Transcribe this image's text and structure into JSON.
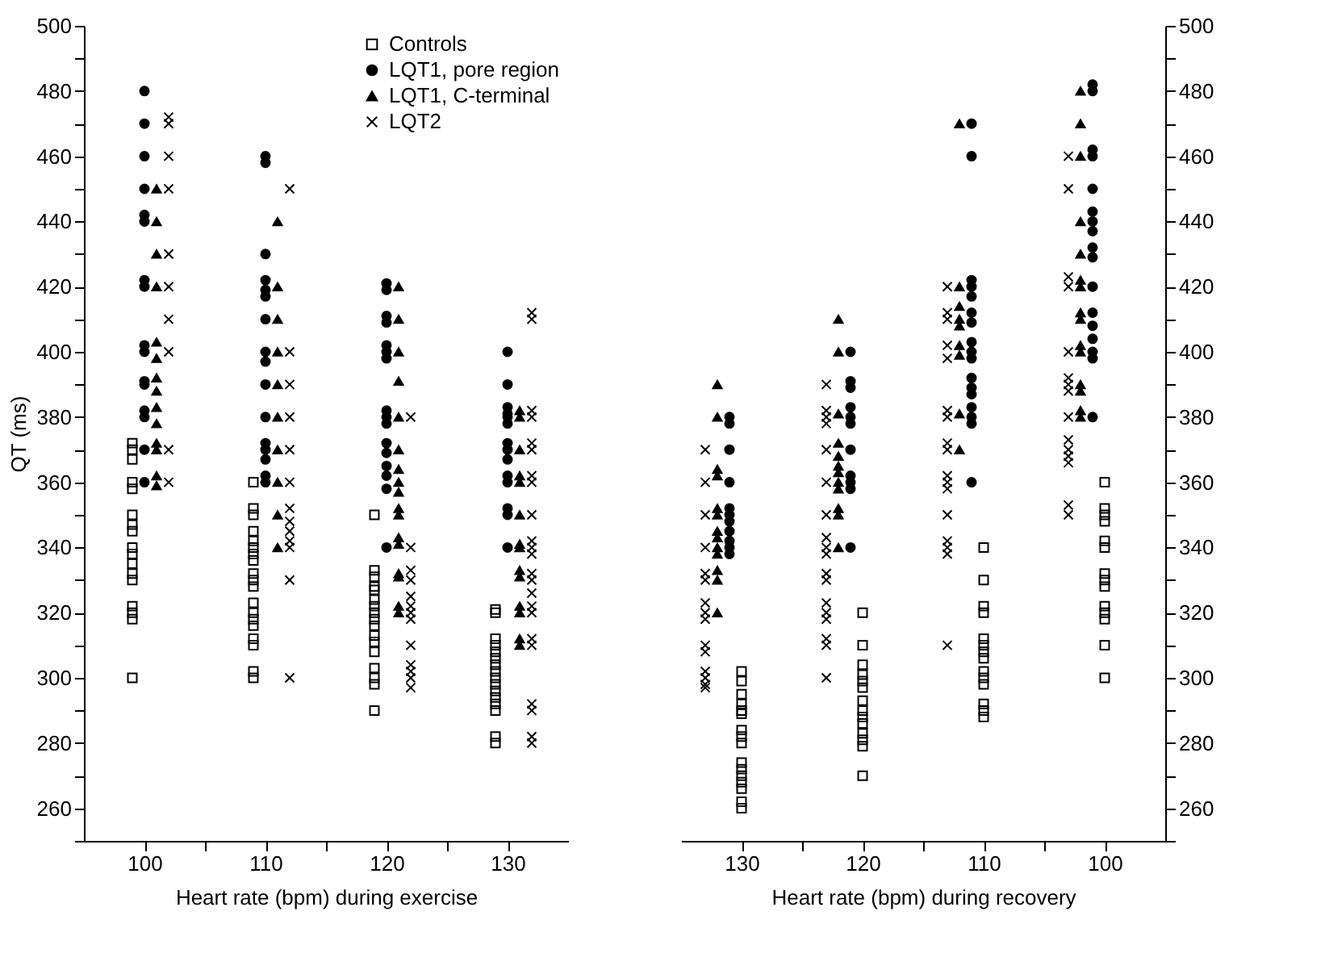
{
  "chart_data": [
    {
      "type": "scatter",
      "ylabel": "QT (ms)",
      "xlabel": "Heart rate (bpm) during exercise",
      "xlim": [
        95,
        135
      ],
      "ylim": [
        250,
        500
      ],
      "grid": false,
      "legend": "top right",
      "xticks": [
        100,
        {
          "value": 105,
          "label": null
        },
        110,
        {
          "value": 115,
          "label": null
        },
        120,
        {
          "value": 125,
          "label": null
        },
        130
      ],
      "yticks": [
        {
          "value": 250,
          "label": null
        },
        260,
        {
          "value": 270,
          "label": null
        },
        280,
        {
          "value": 290,
          "label": null
        },
        300,
        {
          "value": 310,
          "label": null
        },
        320,
        {
          "value": 330,
          "label": null
        },
        340,
        {
          "value": 350,
          "label": null
        },
        360,
        {
          "value": 370,
          "label": null
        },
        380,
        {
          "value": 390,
          "label": null
        },
        400,
        {
          "value": 410,
          "label": null
        },
        420,
        {
          "value": 430,
          "label": null
        },
        440,
        {
          "value": 450,
          "label": null
        },
        460,
        {
          "value": 470,
          "label": null
        },
        480,
        {
          "value": 490,
          "label": null
        },
        500
      ],
      "series": [
        {
          "name": "Controls",
          "color": "#000000",
          "marker": "square",
          "x": [
            99,
            99,
            99,
            99,
            99,
            99,
            99,
            99,
            99,
            99,
            99,
            99,
            99,
            99,
            99,
            99,
            99,
            109,
            109,
            109,
            109,
            109,
            109,
            109,
            109,
            109,
            109,
            109,
            109,
            109,
            109,
            109,
            109,
            109,
            109,
            109,
            119,
            119,
            119,
            119,
            119,
            119,
            119,
            119,
            119,
            119,
            119,
            119,
            119,
            119,
            119,
            119,
            119,
            129,
            129,
            129,
            129,
            129,
            129,
            129,
            129,
            129,
            129,
            129,
            129,
            129,
            129,
            129,
            129
          ],
          "values": [
            372,
            370,
            367,
            360,
            358,
            350,
            347,
            345,
            340,
            338,
            335,
            332,
            330,
            322,
            320,
            318,
            300,
            360,
            352,
            350,
            345,
            342,
            340,
            338,
            336,
            332,
            330,
            328,
            323,
            320,
            318,
            316,
            312,
            310,
            302,
            300,
            350,
            333,
            331,
            328,
            327,
            324,
            322,
            320,
            318,
            316,
            313,
            311,
            308,
            303,
            300,
            298,
            290,
            321,
            320,
            312,
            310,
            308,
            306,
            304,
            302,
            300,
            298,
            296,
            294,
            292,
            290,
            282,
            280
          ]
        },
        {
          "name": "LQT1, pore region",
          "color": "#000000",
          "marker": "circle",
          "x": [
            100,
            100,
            100,
            100,
            100,
            100,
            100,
            100,
            100,
            100,
            100,
            100,
            100,
            100,
            100,
            100,
            110,
            110,
            110,
            110,
            110,
            110,
            110,
            110,
            110,
            110,
            110,
            110,
            110,
            110,
            110,
            110,
            120,
            120,
            120,
            120,
            120,
            120,
            120,
            120,
            120,
            120,
            120,
            120,
            120,
            120,
            120,
            120,
            130,
            130,
            130,
            130,
            130,
            130,
            130,
            130,
            130,
            130,
            130,
            130,
            130,
            130
          ],
          "values": [
            480,
            470,
            460,
            450,
            442,
            440,
            422,
            420,
            402,
            400,
            391,
            390,
            382,
            380,
            370,
            360,
            460,
            458,
            430,
            422,
            419,
            417,
            410,
            400,
            397,
            390,
            380,
            372,
            370,
            367,
            362,
            360,
            421,
            419,
            411,
            409,
            402,
            400,
            398,
            382,
            380,
            378,
            372,
            369,
            365,
            362,
            358,
            340,
            400,
            390,
            383,
            381,
            380,
            378,
            372,
            370,
            367,
            362,
            360,
            352,
            350,
            340
          ]
        },
        {
          "name": "LQT1, C-terminal",
          "color": "#000000",
          "marker": "triangle",
          "x": [
            101,
            101,
            101,
            101,
            101,
            101,
            101,
            101,
            101,
            101,
            101,
            101,
            101,
            101,
            111,
            111,
            111,
            111,
            111,
            111,
            111,
            111,
            111,
            111,
            121,
            121,
            121,
            121,
            121,
            121,
            121,
            121,
            121,
            121,
            121,
            121,
            121,
            121,
            121,
            121,
            121,
            131,
            131,
            131,
            131,
            131,
            131,
            131,
            131,
            131,
            131,
            131,
            131,
            131,
            131
          ],
          "values": [
            450,
            440,
            430,
            420,
            403,
            398,
            392,
            388,
            383,
            378,
            372,
            370,
            362,
            359,
            440,
            420,
            410,
            400,
            390,
            380,
            370,
            360,
            350,
            340,
            420,
            410,
            400,
            391,
            380,
            370,
            364,
            360,
            357,
            352,
            350,
            343,
            341,
            332,
            331,
            322,
            320,
            382,
            380,
            370,
            362,
            360,
            350,
            341,
            340,
            333,
            331,
            322,
            320,
            312,
            310
          ]
        },
        {
          "name": "LQT2",
          "color": "#000000",
          "marker": "cross",
          "x": [
            102,
            102,
            102,
            102,
            102,
            102,
            102,
            102,
            102,
            102,
            112,
            112,
            112,
            112,
            112,
            112,
            112,
            112,
            112,
            112,
            112,
            112,
            112,
            122,
            122,
            122,
            122,
            122,
            122,
            122,
            122,
            122,
            122,
            122,
            122,
            122,
            132,
            132,
            132,
            132,
            132,
            132,
            132,
            132,
            132,
            132,
            132,
            132,
            132,
            132,
            132,
            132,
            132,
            132,
            132,
            132,
            132,
            132,
            132
          ],
          "values": [
            472,
            470,
            460,
            450,
            430,
            420,
            410,
            400,
            370,
            360,
            450,
            400,
            390,
            380,
            370,
            360,
            352,
            348,
            345,
            342,
            340,
            330,
            300,
            380,
            340,
            333,
            330,
            325,
            322,
            320,
            318,
            310,
            304,
            302,
            300,
            297,
            412,
            410,
            382,
            380,
            372,
            370,
            362,
            360,
            350,
            342,
            340,
            338,
            332,
            330,
            326,
            322,
            320,
            312,
            310,
            292,
            290,
            282,
            280
          ]
        }
      ]
    },
    {
      "type": "scatter",
      "xlabel": "Heart rate (bpm) during recovery",
      "xlim": [
        135,
        95
      ],
      "y2lim": [
        250,
        500
      ],
      "grid": false,
      "xticks": [
        130,
        {
          "value": 125,
          "label": null
        },
        120,
        {
          "value": 115,
          "label": null
        },
        110,
        {
          "value": 105,
          "label": null
        },
        100
      ],
      "y2ticks": [
        {
          "value": 250,
          "label": null
        },
        260,
        {
          "value": 270,
          "label": null
        },
        280,
        {
          "value": 290,
          "label": null
        },
        300,
        {
          "value": 310,
          "label": null
        },
        320,
        {
          "value": 330,
          "label": null
        },
        340,
        {
          "value": 350,
          "label": null
        },
        360,
        {
          "value": 370,
          "label": null
        },
        380,
        {
          "value": 390,
          "label": null
        },
        400,
        {
          "value": 410,
          "label": null
        },
        420,
        {
          "value": 430,
          "label": null
        },
        440,
        {
          "value": 450,
          "label": null
        },
        460,
        {
          "value": 470,
          "label": null
        },
        480,
        {
          "value": 490,
          "label": null
        },
        500
      ],
      "series": [
        {
          "color": "#000000",
          "marker": "square",
          "axis": "y2",
          "x": [
            130,
            130,
            130,
            130,
            130,
            130,
            130,
            130,
            130,
            130,
            130,
            130,
            130,
            130,
            130,
            130,
            120,
            120,
            120,
            120,
            120,
            120,
            120,
            120,
            120,
            120,
            120,
            120,
            120,
            120,
            110,
            110,
            110,
            110,
            110,
            110,
            110,
            110,
            110,
            110,
            110,
            110,
            110,
            110,
            100,
            100,
            100,
            100,
            100,
            100,
            100,
            100,
            100,
            100,
            100,
            100,
            100,
            100
          ],
          "values": [
            302,
            299,
            295,
            292,
            290,
            289,
            284,
            282,
            280,
            274,
            272,
            270,
            268,
            266,
            262,
            260,
            320,
            310,
            304,
            301,
            299,
            297,
            293,
            290,
            288,
            286,
            283,
            281,
            279,
            270,
            340,
            330,
            322,
            320,
            312,
            310,
            308,
            306,
            302,
            300,
            298,
            292,
            290,
            288,
            360,
            352,
            350,
            348,
            342,
            340,
            332,
            330,
            328,
            322,
            320,
            318,
            310,
            300
          ]
        },
        {
          "color": "#000000",
          "marker": "circle",
          "axis": "y2",
          "x": [
            131,
            131,
            131,
            131,
            131,
            131,
            131,
            131,
            131,
            131,
            131,
            121,
            121,
            121,
            121,
            121,
            121,
            121,
            121,
            121,
            121,
            121,
            111,
            111,
            111,
            111,
            111,
            111,
            111,
            111,
            111,
            111,
            111,
            111,
            111,
            111,
            111,
            111,
            111,
            101,
            101,
            101,
            101,
            101,
            101,
            101,
            101,
            101,
            101,
            101,
            101,
            101,
            101,
            101,
            101,
            101
          ],
          "values": [
            380,
            378,
            370,
            360,
            352,
            350,
            348,
            345,
            342,
            340,
            338,
            400,
            391,
            389,
            383,
            380,
            378,
            370,
            362,
            360,
            358,
            340,
            470,
            460,
            422,
            420,
            417,
            412,
            409,
            403,
            400,
            398,
            392,
            389,
            387,
            383,
            380,
            378,
            360,
            482,
            480,
            462,
            460,
            450,
            443,
            440,
            437,
            432,
            429,
            420,
            412,
            408,
            404,
            400,
            398,
            380
          ]
        },
        {
          "color": "#000000",
          "marker": "triangle",
          "axis": "y2",
          "x": [
            132,
            132,
            132,
            132,
            132,
            132,
            132,
            132,
            132,
            132,
            132,
            132,
            132,
            122,
            122,
            122,
            122,
            122,
            122,
            122,
            122,
            122,
            122,
            122,
            122,
            112,
            112,
            112,
            112,
            112,
            112,
            112,
            112,
            112,
            102,
            102,
            102,
            102,
            102,
            102,
            102,
            102,
            102,
            102,
            102,
            102,
            102,
            102,
            102
          ],
          "values": [
            390,
            380,
            364,
            362,
            352,
            350,
            345,
            343,
            340,
            338,
            333,
            330,
            320,
            410,
            400,
            381,
            372,
            368,
            365,
            363,
            360,
            358,
            352,
            350,
            340,
            470,
            420,
            414,
            410,
            408,
            402,
            399,
            381,
            370,
            480,
            470,
            460,
            440,
            430,
            422,
            420,
            412,
            410,
            402,
            400,
            390,
            388,
            382,
            380
          ]
        },
        {
          "color": "#000000",
          "marker": "cross",
          "axis": "y2",
          "x": [
            133,
            133,
            133,
            133,
            133,
            133,
            133,
            133,
            133,
            133,
            133,
            133,
            133,
            133,
            133,
            123,
            123,
            123,
            123,
            123,
            123,
            123,
            123,
            123,
            123,
            123,
            123,
            123,
            123,
            123,
            123,
            123,
            123,
            113,
            113,
            113,
            113,
            113,
            113,
            113,
            113,
            113,
            113,
            113,
            113,
            113,
            113,
            113,
            113,
            113,
            103,
            103,
            103,
            103,
            103,
            103,
            103,
            103,
            103,
            103,
            103,
            103,
            103,
            103,
            103
          ],
          "values": [
            370,
            360,
            350,
            340,
            332,
            330,
            323,
            320,
            318,
            310,
            308,
            302,
            300,
            298,
            297,
            390,
            382,
            380,
            378,
            370,
            360,
            350,
            343,
            340,
            338,
            332,
            330,
            323,
            320,
            318,
            312,
            310,
            300,
            420,
            412,
            410,
            402,
            398,
            382,
            380,
            372,
            370,
            362,
            360,
            358,
            350,
            342,
            340,
            338,
            310,
            460,
            450,
            423,
            420,
            400,
            392,
            390,
            388,
            380,
            373,
            370,
            368,
            366,
            353,
            350
          ]
        }
      ]
    }
  ]
}
